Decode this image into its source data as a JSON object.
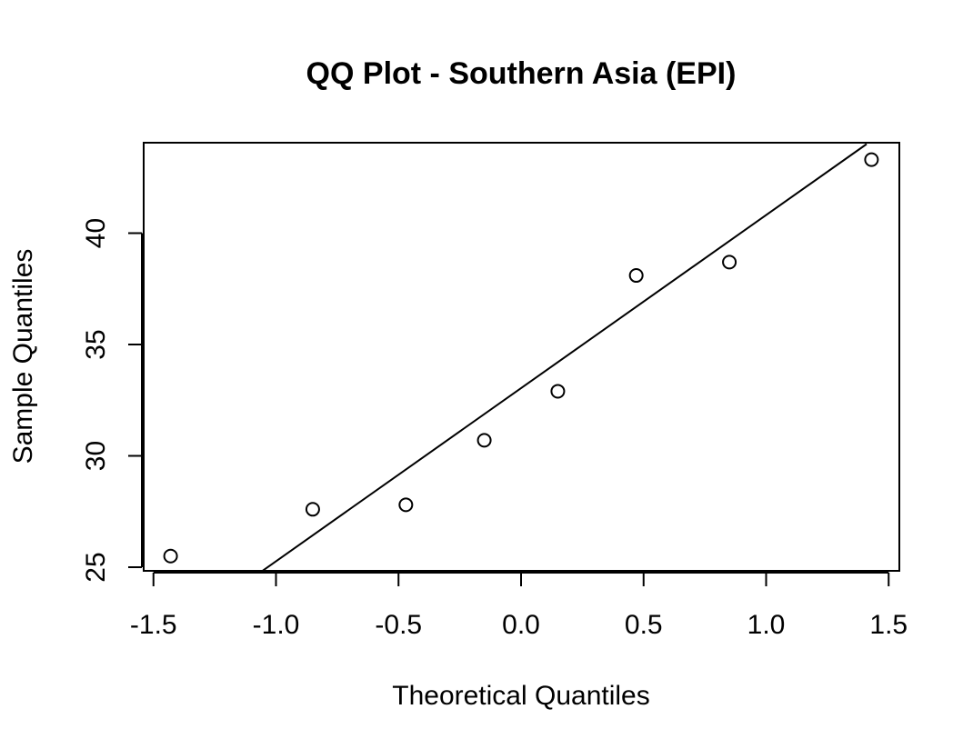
{
  "chart_data": {
    "type": "scatter",
    "title": "QQ Plot - Southern Asia (EPI)",
    "xlabel": "Theoretical Quantiles",
    "ylabel": "Sample Quantiles",
    "xlim": [
      -1.5,
      1.5
    ],
    "ylim": [
      24.8,
      44.0
    ],
    "xticks": [
      -1.5,
      -1.0,
      -0.5,
      0.0,
      0.5,
      1.0,
      1.5
    ],
    "xtick_labels": [
      "-1.5",
      "-1.0",
      "-0.5",
      "0.0",
      "0.5",
      "1.0",
      "1.5"
    ],
    "yticks": [
      25,
      30,
      35,
      40
    ],
    "ytick_labels": [
      "25",
      "30",
      "35",
      "40"
    ],
    "grid": false,
    "points": [
      {
        "x": -1.43,
        "y": 25.5
      },
      {
        "x": -0.85,
        "y": 27.6
      },
      {
        "x": -0.47,
        "y": 27.8
      },
      {
        "x": -0.15,
        "y": 30.7
      },
      {
        "x": 0.15,
        "y": 32.9
      },
      {
        "x": 0.47,
        "y": 38.1
      },
      {
        "x": 0.85,
        "y": 38.7
      },
      {
        "x": 1.43,
        "y": 43.3
      }
    ],
    "reference_line": {
      "x1": -1.06,
      "y1": 24.8,
      "x2": 1.41,
      "y2": 44.0
    }
  }
}
